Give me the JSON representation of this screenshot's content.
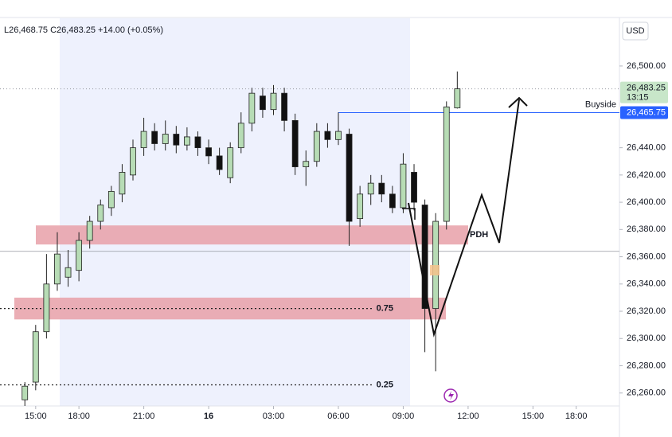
{
  "chart_data": {
    "type": "candlestick",
    "header": "L26,468.75  C26,483.25  +14.00 (+0.05%)",
    "currency": "USD",
    "x": [
      -1,
      0,
      1,
      2,
      3,
      4,
      5,
      6,
      7,
      8,
      9,
      10,
      11,
      12,
      13,
      14,
      15,
      16,
      17,
      18,
      19,
      20,
      21,
      22,
      23,
      24,
      25,
      26,
      27,
      28,
      29,
      30,
      31,
      32,
      33,
      34,
      35,
      36,
      37,
      38,
      39
    ],
    "open": [
      26255,
      26268,
      26305,
      26340,
      26345,
      26350,
      26372,
      26386,
      26396,
      26406,
      26420,
      26440,
      26452,
      26443,
      26450,
      26442,
      26448,
      26440,
      26434,
      26418,
      26440,
      26458,
      26478,
      26468,
      26480,
      26460,
      26426,
      26430,
      26452,
      26446,
      26450,
      26388,
      26406,
      26414,
      26406,
      26396,
      26422,
      26398,
      26322,
      26386,
      26469.25
    ],
    "high": [
      26268,
      26310,
      26362,
      26378,
      26365,
      26378,
      26390,
      26402,
      26412,
      26428,
      26446,
      26462,
      26458,
      26460,
      26456,
      26455,
      26452,
      26446,
      26440,
      26444,
      26466,
      26484,
      26484,
      26486,
      26484,
      26465,
      26438,
      26458,
      26458,
      26466,
      26454,
      26412,
      26420,
      26420,
      26412,
      26436,
      26428,
      26402,
      26392,
      26474,
      26496
    ],
    "low": [
      26250.5,
      26262,
      26300,
      26335,
      26338,
      26342,
      26366,
      26380,
      26390,
      26400,
      26416,
      26434,
      26438,
      26438,
      26436,
      26438,
      26434,
      26428,
      26420,
      26414,
      26436,
      26452,
      26462,
      26464,
      26452,
      26420,
      26412,
      26426,
      26440,
      26442,
      26368,
      26382,
      26398,
      26400,
      26392,
      26392,
      26394,
      26290,
      26276,
      26380,
      26468.75
    ],
    "close": [
      26265,
      26305,
      26340,
      26362,
      26352,
      26372,
      26386,
      26398,
      26408,
      26422,
      26440,
      26452,
      26443,
      26450,
      26442,
      26448,
      26440,
      26434,
      26424,
      26440,
      26458,
      26480,
      26468,
      26480,
      26460,
      26426,
      26430,
      26452,
      26446,
      26452,
      26386,
      26406,
      26414,
      26406,
      26396,
      26428,
      26400,
      26322,
      26386,
      26470,
      26483.25
    ],
    "up_color": "#b7dcb5",
    "down_color": "#111111",
    "xlim": [
      -3.3,
      54
    ],
    "xticks": [
      {
        "value": 0,
        "label": "15:00"
      },
      {
        "value": 4,
        "label": "18:00"
      },
      {
        "value": 10,
        "label": "21:00"
      },
      16,
      {
        "value": 22,
        "label": "03:00"
      },
      {
        "value": 28,
        "label": "06:00"
      },
      {
        "value": 34,
        "label": "09:00"
      },
      {
        "value": 40,
        "label": "12:00"
      },
      {
        "value": 46,
        "label": "15:00"
      },
      {
        "value": 50,
        "label": "18:00"
      }
    ],
    "ylim": [
      26250.5,
      26535
    ],
    "yticks": [
      {
        "value": 26260,
        "label": "26,260.00"
      },
      {
        "value": 26280,
        "label": "26,280.00"
      },
      {
        "value": 26300,
        "label": "26,300.00"
      },
      {
        "value": 26320,
        "label": "26,320.00"
      },
      {
        "value": 26340,
        "label": "26,340.00"
      },
      {
        "value": 26360,
        "label": "26,360.00"
      },
      {
        "value": 26380,
        "label": "26,380.00"
      },
      {
        "value": 26400,
        "label": "26,400.00"
      },
      {
        "value": 26420,
        "label": "26,420.00"
      },
      {
        "value": 26440,
        "label": "26,440.00"
      },
      {
        "value": 26500,
        "label": "26,500.00"
      }
    ],
    "last_price": {
      "value": 26483.25,
      "label": "26,483.25",
      "countdown": "13:15",
      "color": "#c8e6c9"
    },
    "levels": [
      {
        "value": 26465.75,
        "label": "Buyside",
        "price_label": "26,465.75",
        "color": "#2962ff"
      },
      {
        "value": 26322,
        "label": "0.75",
        "color": "#222222"
      },
      {
        "value": 26266,
        "label": "0.25",
        "color": "#222222"
      }
    ],
    "hline": 26364,
    "zones": [
      {
        "low": 26369,
        "high": 26383,
        "label": "PDH",
        "color": "#e8a0a8"
      },
      {
        "low": 26314,
        "high": 26330,
        "color": "#e8a0a8"
      }
    ]
  }
}
